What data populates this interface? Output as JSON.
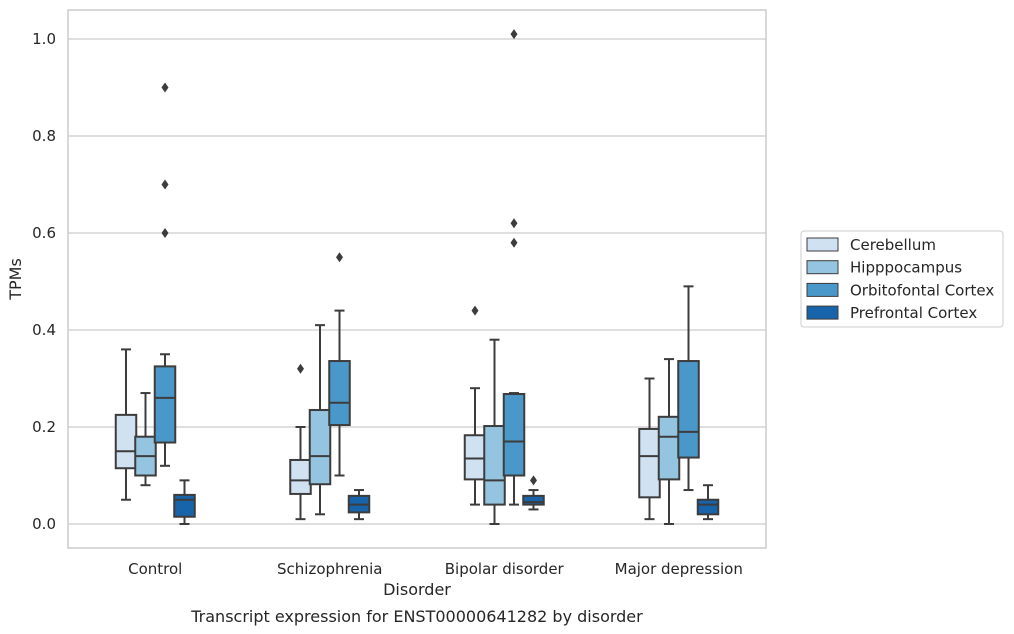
{
  "chart_data": {
    "type": "box",
    "xlabel": "Disorder",
    "ylabel": "TPMs",
    "caption": "Transcript expression for ENST00000641282 by disorder",
    "ylim": [
      -0.05,
      1.06
    ],
    "yticks": [
      "0.0",
      "0.2",
      "0.4",
      "0.6",
      "0.8",
      "1.0"
    ],
    "grid": "horizontal",
    "legend_position": "right",
    "categories": [
      "Control",
      "Schizophrenia",
      "Bipolar disorder",
      "Major depression"
    ],
    "series": [
      {
        "name": "Cerebellum",
        "color": "#d0e1f2",
        "boxes": [
          {
            "whislo": 0.05,
            "q1": 0.115,
            "med": 0.15,
            "q3": 0.225,
            "whishi": 0.36,
            "fliers": []
          },
          {
            "whislo": 0.01,
            "q1": 0.062,
            "med": 0.09,
            "q3": 0.132,
            "whishi": 0.2,
            "fliers": [
              0.32
            ]
          },
          {
            "whislo": 0.04,
            "q1": 0.092,
            "med": 0.135,
            "q3": 0.183,
            "whishi": 0.28,
            "fliers": [
              0.44
            ]
          },
          {
            "whislo": 0.01,
            "q1": 0.055,
            "med": 0.14,
            "q3": 0.196,
            "whishi": 0.3,
            "fliers": []
          }
        ]
      },
      {
        "name": "Hipppocampus",
        "color": "#94c4df",
        "boxes": [
          {
            "whislo": 0.08,
            "q1": 0.1,
            "med": 0.14,
            "q3": 0.18,
            "whishi": 0.27,
            "fliers": []
          },
          {
            "whislo": 0.02,
            "q1": 0.082,
            "med": 0.14,
            "q3": 0.235,
            "whishi": 0.41,
            "fliers": []
          },
          {
            "whislo": 0.0,
            "q1": 0.04,
            "med": 0.09,
            "q3": 0.202,
            "whishi": 0.38,
            "fliers": []
          },
          {
            "whislo": 0.0,
            "q1": 0.092,
            "med": 0.18,
            "q3": 0.221,
            "whishi": 0.34,
            "fliers": []
          }
        ]
      },
      {
        "name": "Orbitofontal Cortex",
        "color": "#4a98c9",
        "boxes": [
          {
            "whislo": 0.12,
            "q1": 0.168,
            "med": 0.26,
            "q3": 0.325,
            "whishi": 0.35,
            "fliers": [
              0.6,
              0.7,
              0.9
            ]
          },
          {
            "whislo": 0.1,
            "q1": 0.204,
            "med": 0.25,
            "q3": 0.336,
            "whishi": 0.44,
            "fliers": [
              0.55
            ]
          },
          {
            "whislo": 0.04,
            "q1": 0.1,
            "med": 0.17,
            "q3": 0.268,
            "whishi": 0.27,
            "fliers": [
              0.58,
              0.62,
              1.01
            ]
          },
          {
            "whislo": 0.07,
            "q1": 0.137,
            "med": 0.19,
            "q3": 0.336,
            "whishi": 0.49,
            "fliers": []
          }
        ]
      },
      {
        "name": "Prefrontal Cortex",
        "color": "#1764ab",
        "boxes": [
          {
            "whislo": 0.0,
            "q1": 0.015,
            "med": 0.05,
            "q3": 0.06,
            "whishi": 0.09,
            "fliers": []
          },
          {
            "whislo": 0.01,
            "q1": 0.024,
            "med": 0.04,
            "q3": 0.058,
            "whishi": 0.07,
            "fliers": []
          },
          {
            "whislo": 0.03,
            "q1": 0.04,
            "med": 0.045,
            "q3": 0.058,
            "whishi": 0.07,
            "fliers": [
              0.09
            ]
          },
          {
            "whislo": 0.01,
            "q1": 0.02,
            "med": 0.04,
            "q3": 0.05,
            "whishi": 0.08,
            "fliers": []
          }
        ]
      }
    ]
  }
}
